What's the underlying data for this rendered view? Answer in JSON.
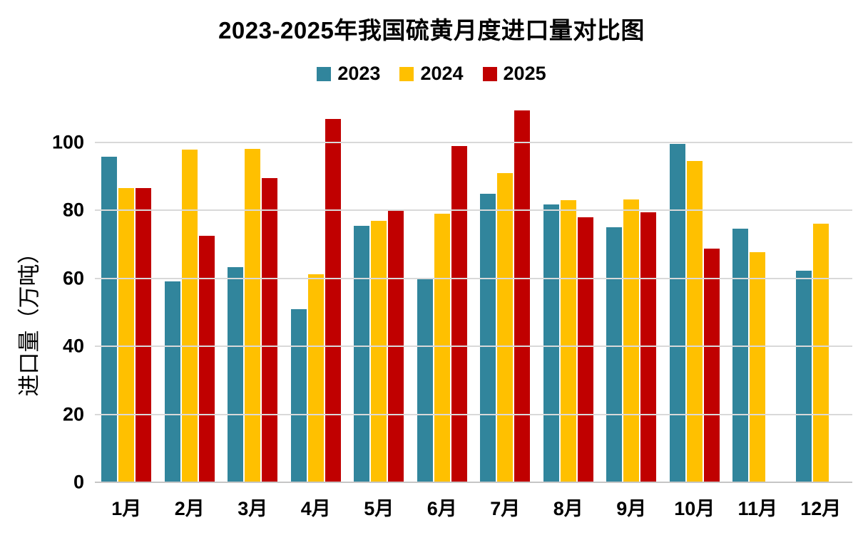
{
  "title": "2023-2025年我国硫黄月度进口量对比图",
  "legend": [
    {
      "label": "2023",
      "color": "#31859C"
    },
    {
      "label": "2024",
      "color": "#FFC000"
    },
    {
      "label": "2025",
      "color": "#C00000"
    }
  ],
  "colors": {
    "series_2023": "#31859C",
    "series_2024": "#FFC000",
    "series_2025": "#C00000",
    "gridline": "#D9D9D9",
    "axis_line": "#C6C6C6",
    "text": "#000000",
    "background": "#FFFFFF"
  },
  "chart_data": {
    "type": "bar",
    "title": "2023-2025年我国硫黄月度进口量对比图",
    "xlabel": "",
    "ylabel": "进口量（万吨）",
    "categories": [
      "1月",
      "2月",
      "3月",
      "4月",
      "5月",
      "6月",
      "7月",
      "8月",
      "9月",
      "10月",
      "11月",
      "12月"
    ],
    "series": [
      {
        "name": "2023",
        "color": "#31859C",
        "values": [
          95.8,
          59.2,
          63.4,
          50.9,
          75.5,
          59.8,
          85.0,
          81.7,
          75.1,
          99.6,
          74.7,
          62.3
        ]
      },
      {
        "name": "2024",
        "color": "#FFC000",
        "values": [
          86.6,
          97.9,
          98.2,
          61.3,
          77.0,
          79.1,
          90.9,
          83.0,
          83.2,
          94.6,
          67.7,
          76.1
        ]
      },
      {
        "name": "2025",
        "color": "#C00000",
        "values": [
          86.6,
          72.6,
          89.5,
          107.0,
          80.1,
          98.9,
          109.4,
          77.9,
          79.5,
          68.8,
          null,
          null
        ]
      }
    ],
    "yticks": [
      0,
      20,
      40,
      60,
      80,
      100
    ],
    "ylim": [
      0,
      100
    ],
    "grid": true,
    "legend_position": "top"
  }
}
